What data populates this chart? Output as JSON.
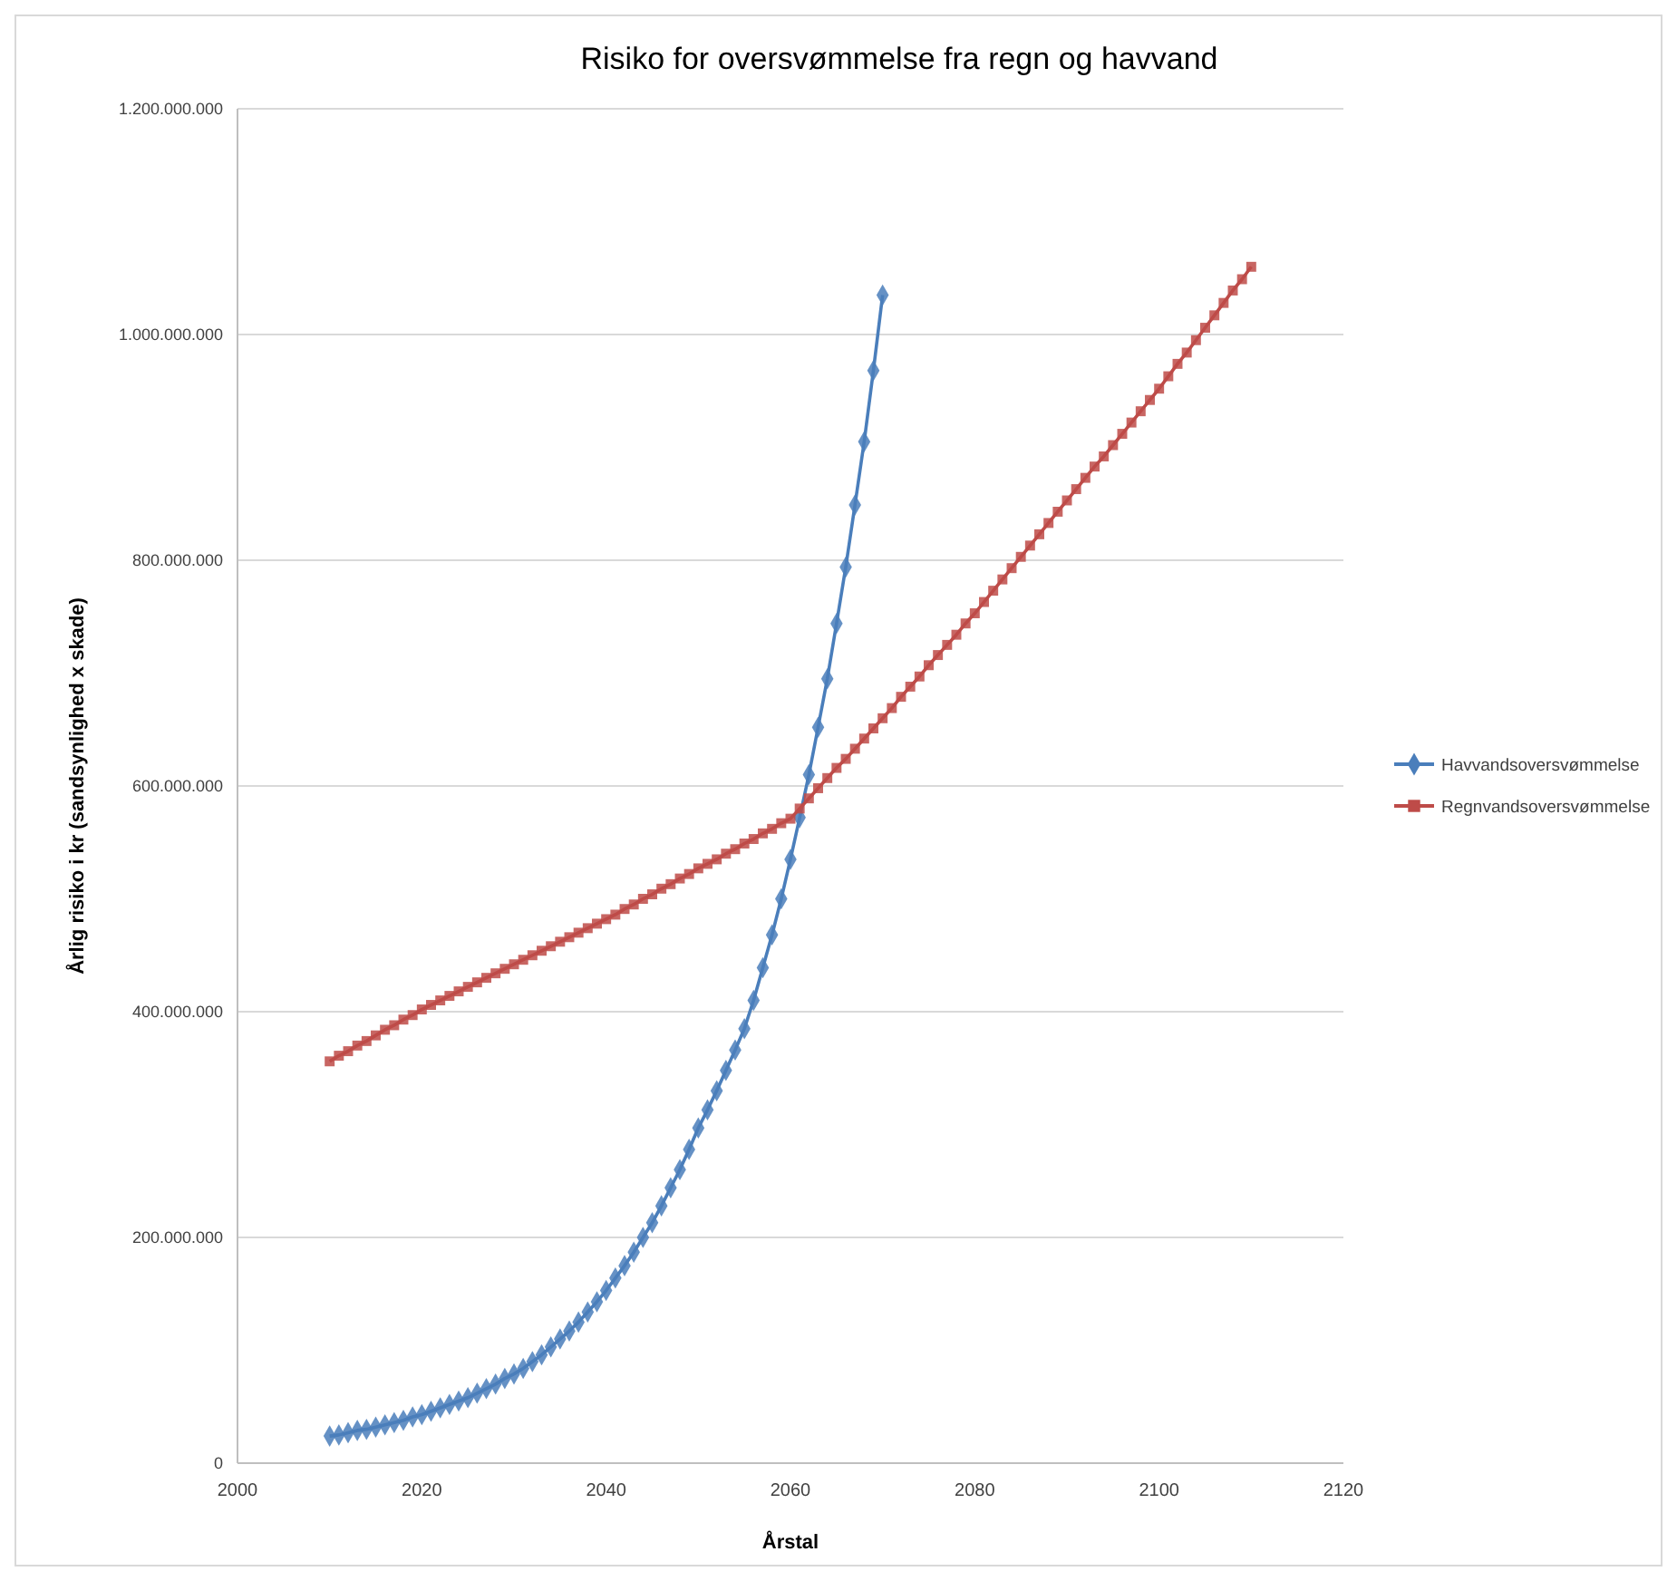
{
  "chart_data": {
    "type": "line",
    "title": "Risiko for oversvømmelse fra regn og havvand",
    "xlabel": "Årstal",
    "ylabel": "Årlig risiko i kr (sandsynlighed x skade)",
    "xlim": [
      2000,
      2120
    ],
    "xticks": [
      2000,
      2020,
      2040,
      2060,
      2080,
      2100,
      2120
    ],
    "ylim": [
      0,
      1200000000
    ],
    "yticks": [
      {
        "value": 0,
        "label": "0"
      },
      {
        "value": 200000000,
        "label": "200.000.000"
      },
      {
        "value": 400000000,
        "label": "400.000.000"
      },
      {
        "value": 600000000,
        "label": "600.000.000"
      },
      {
        "value": 800000000,
        "label": "800.000.000"
      },
      {
        "value": 1000000000,
        "label": "1.000.000.000"
      },
      {
        "value": 1200000000,
        "label": "1.200.000.000"
      }
    ],
    "grid": "y",
    "legend": "right",
    "series": [
      {
        "name": "Havvandsoversvømmelse",
        "color": "#4a7ebb",
        "marker": "diamond",
        "x": [
          2010,
          2011,
          2012,
          2013,
          2014,
          2015,
          2016,
          2017,
          2018,
          2019,
          2020,
          2021,
          2022,
          2023,
          2024,
          2025,
          2026,
          2027,
          2028,
          2029,
          2030,
          2031,
          2032,
          2033,
          2034,
          2035,
          2036,
          2037,
          2038,
          2039,
          2040,
          2041,
          2042,
          2043,
          2044,
          2045,
          2046,
          2047,
          2048,
          2049,
          2050,
          2051,
          2052,
          2053,
          2054,
          2055,
          2056,
          2057,
          2058,
          2059,
          2060,
          2061,
          2062,
          2063,
          2064,
          2065,
          2066,
          2067,
          2068,
          2069,
          2070
        ],
        "values": [
          24000000,
          25000000,
          27000000,
          29000000,
          30000000,
          32000000,
          34000000,
          36000000,
          38000000,
          41000000,
          43000000,
          46000000,
          49000000,
          52000000,
          55000000,
          58000000,
          62000000,
          66000000,
          70000000,
          75000000,
          79000000,
          84000000,
          90000000,
          96000000,
          103000000,
          110000000,
          117000000,
          125000000,
          134000000,
          143000000,
          153000000,
          164000000,
          175000000,
          187000000,
          200000000,
          213000000,
          228000000,
          244000000,
          260000000,
          278000000,
          297000000,
          313000000,
          330000000,
          348000000,
          366000000,
          385000000,
          410000000,
          439000000,
          468000000,
          500000000,
          535000000,
          572000000,
          610000000,
          652000000,
          695000000,
          744000000,
          794000000,
          849000000,
          905000000,
          968000000,
          1035000000
        ]
      },
      {
        "name": "Regnvandsoversvømmelse",
        "color": "#be4b48",
        "marker": "square",
        "x": [
          2010,
          2011,
          2012,
          2013,
          2014,
          2015,
          2016,
          2017,
          2018,
          2019,
          2020,
          2021,
          2022,
          2023,
          2024,
          2025,
          2026,
          2027,
          2028,
          2029,
          2030,
          2031,
          2032,
          2033,
          2034,
          2035,
          2036,
          2037,
          2038,
          2039,
          2040,
          2041,
          2042,
          2043,
          2044,
          2045,
          2046,
          2047,
          2048,
          2049,
          2050,
          2051,
          2052,
          2053,
          2054,
          2055,
          2056,
          2057,
          2058,
          2059,
          2060,
          2061,
          2062,
          2063,
          2064,
          2065,
          2066,
          2067,
          2068,
          2069,
          2070,
          2071,
          2072,
          2073,
          2074,
          2075,
          2076,
          2077,
          2078,
          2079,
          2080,
          2081,
          2082,
          2083,
          2084,
          2085,
          2086,
          2087,
          2088,
          2089,
          2090,
          2091,
          2092,
          2093,
          2094,
          2095,
          2096,
          2097,
          2098,
          2099,
          2100,
          2101,
          2102,
          2103,
          2104,
          2105,
          2106,
          2107,
          2108,
          2109,
          2110
        ],
        "values": [
          356000000,
          361000000,
          365000000,
          370000000,
          374000000,
          379000000,
          384000000,
          388000000,
          393000000,
          397000000,
          402000000,
          406000000,
          410000000,
          414000000,
          418000000,
          422000000,
          426000000,
          430000000,
          434000000,
          438000000,
          442000000,
          446000000,
          450000000,
          454000000,
          458000000,
          462000000,
          466000000,
          470000000,
          474000000,
          478000000,
          482000000,
          486000000,
          491000000,
          495000000,
          500000000,
          504000000,
          509000000,
          513000000,
          518000000,
          522000000,
          527000000,
          531000000,
          535000000,
          540000000,
          544000000,
          549000000,
          553000000,
          558000000,
          562000000,
          567000000,
          571000000,
          580000000,
          589000000,
          598000000,
          607000000,
          616000000,
          624000000,
          633000000,
          642000000,
          651000000,
          660000000,
          669000000,
          679000000,
          688000000,
          697000000,
          707000000,
          716000000,
          725000000,
          734000000,
          744000000,
          753000000,
          763000000,
          773000000,
          783000000,
          793000000,
          803000000,
          813000000,
          823000000,
          833000000,
          843000000,
          853000000,
          863000000,
          873000000,
          883000000,
          892000000,
          902000000,
          912000000,
          922000000,
          932000000,
          942000000,
          952000000,
          963000000,
          974000000,
          984000000,
          995000000,
          1006000000,
          1017000000,
          1028000000,
          1039000000,
          1049000000,
          1060000000
        ]
      }
    ]
  }
}
